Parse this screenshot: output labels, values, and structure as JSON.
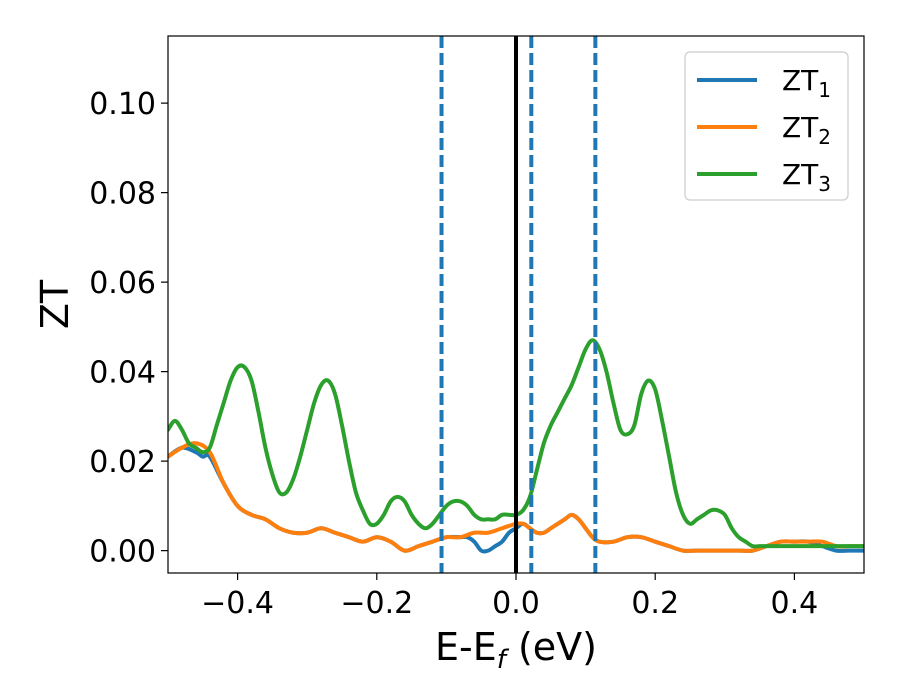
{
  "chart_data": {
    "type": "line",
    "xlabel": "E-E",
    "xlabel_subscript": "f",
    "xlabel_suffix": " (eV)",
    "ylabel": "ZT",
    "xlim": [
      -0.5,
      0.5
    ],
    "ylim": [
      -0.005,
      0.115
    ],
    "x_ticks": [
      {
        "value": -0.4,
        "label": "−0.4"
      },
      {
        "value": -0.2,
        "label": "−0.2"
      },
      {
        "value": 0.0,
        "label": "0.0"
      },
      {
        "value": 0.2,
        "label": "0.2"
      },
      {
        "value": 0.4,
        "label": "0.4"
      }
    ],
    "y_ticks": [
      {
        "value": 0.0,
        "label": "0.00"
      },
      {
        "value": 0.02,
        "label": "0.02"
      },
      {
        "value": 0.04,
        "label": "0.04"
      },
      {
        "value": 0.06,
        "label": "0.06"
      },
      {
        "value": 0.08,
        "label": "0.08"
      },
      {
        "value": 0.1,
        "label": "0.10"
      }
    ],
    "grid": false,
    "legend_position": "top-right",
    "solid_vertical_line": {
      "x": 0.0,
      "color": "#000000"
    },
    "dashed_vertical_lines": [
      {
        "x": -0.107,
        "color": "#1f77b4"
      },
      {
        "x": 0.022,
        "color": "#1f77b4"
      },
      {
        "x": 0.114,
        "color": "#1f77b4"
      }
    ],
    "series": [
      {
        "name": "ZT",
        "subscript": "1",
        "color": "#1f77b4",
        "x": [
          -0.5,
          -0.48,
          -0.46,
          -0.45,
          -0.44,
          -0.42,
          -0.4,
          -0.38,
          -0.36,
          -0.34,
          -0.32,
          -0.3,
          -0.28,
          -0.26,
          -0.24,
          -0.22,
          -0.2,
          -0.18,
          -0.16,
          -0.14,
          -0.12,
          -0.1,
          -0.08,
          -0.07,
          -0.06,
          -0.05,
          -0.04,
          -0.03,
          -0.02,
          -0.01,
          0.0,
          0.01,
          0.02,
          0.03,
          0.04,
          0.05,
          0.06,
          0.07,
          0.08,
          0.09,
          0.1,
          0.11,
          0.12,
          0.14,
          0.16,
          0.18,
          0.2,
          0.22,
          0.24,
          0.26,
          0.28,
          0.3,
          0.32,
          0.34,
          0.36,
          0.38,
          0.4,
          0.42,
          0.44,
          0.46,
          0.48,
          0.5
        ],
        "values": [
          0.021,
          0.023,
          0.022,
          0.021,
          0.021,
          0.015,
          0.01,
          0.008,
          0.007,
          0.005,
          0.004,
          0.004,
          0.005,
          0.004,
          0.003,
          0.002,
          0.003,
          0.002,
          0.0,
          0.001,
          0.002,
          0.003,
          0.003,
          0.003,
          0.002,
          0.0,
          0.0,
          0.001,
          0.002,
          0.004,
          0.005,
          0.006,
          0.005,
          0.004,
          0.004,
          0.005,
          0.006,
          0.007,
          0.008,
          0.007,
          0.005,
          0.003,
          0.002,
          0.002,
          0.003,
          0.003,
          0.002,
          0.001,
          0.0,
          0.0,
          0.0,
          0.0,
          0.0,
          0.0,
          0.001,
          0.002,
          0.002,
          0.002,
          0.001,
          0.0,
          0.0,
          0.0
        ]
      },
      {
        "name": "ZT",
        "subscript": "2",
        "color": "#ff7f0e",
        "x": [
          -0.5,
          -0.48,
          -0.46,
          -0.44,
          -0.42,
          -0.4,
          -0.38,
          -0.36,
          -0.34,
          -0.32,
          -0.3,
          -0.28,
          -0.26,
          -0.24,
          -0.22,
          -0.2,
          -0.18,
          -0.16,
          -0.14,
          -0.12,
          -0.1,
          -0.08,
          -0.06,
          -0.04,
          -0.02,
          0.0,
          0.01,
          0.02,
          0.03,
          0.04,
          0.05,
          0.06,
          0.07,
          0.08,
          0.09,
          0.1,
          0.11,
          0.12,
          0.14,
          0.16,
          0.18,
          0.2,
          0.22,
          0.24,
          0.26,
          0.28,
          0.3,
          0.32,
          0.34,
          0.36,
          0.38,
          0.4,
          0.42,
          0.44,
          0.46,
          0.48,
          0.5
        ],
        "values": [
          0.021,
          0.023,
          0.024,
          0.022,
          0.015,
          0.01,
          0.008,
          0.007,
          0.005,
          0.004,
          0.004,
          0.005,
          0.004,
          0.003,
          0.002,
          0.003,
          0.002,
          0.0,
          0.001,
          0.002,
          0.003,
          0.003,
          0.004,
          0.004,
          0.005,
          0.006,
          0.006,
          0.005,
          0.004,
          0.004,
          0.005,
          0.006,
          0.007,
          0.008,
          0.007,
          0.005,
          0.003,
          0.002,
          0.002,
          0.003,
          0.003,
          0.002,
          0.001,
          0.0,
          0.0,
          0.0,
          0.0,
          0.0,
          0.0,
          0.001,
          0.002,
          0.002,
          0.002,
          0.002,
          0.001,
          0.001,
          0.001
        ]
      },
      {
        "name": "ZT",
        "subscript": "3",
        "color": "#2ca02c",
        "x": [
          -0.5,
          -0.49,
          -0.48,
          -0.47,
          -0.46,
          -0.45,
          -0.44,
          -0.43,
          -0.42,
          -0.41,
          -0.4,
          -0.39,
          -0.38,
          -0.37,
          -0.36,
          -0.35,
          -0.34,
          -0.33,
          -0.32,
          -0.31,
          -0.3,
          -0.29,
          -0.28,
          -0.27,
          -0.26,
          -0.25,
          -0.24,
          -0.23,
          -0.22,
          -0.21,
          -0.2,
          -0.19,
          -0.18,
          -0.17,
          -0.16,
          -0.15,
          -0.14,
          -0.13,
          -0.12,
          -0.11,
          -0.1,
          -0.09,
          -0.08,
          -0.07,
          -0.06,
          -0.05,
          -0.04,
          -0.03,
          -0.02,
          -0.01,
          0.0,
          0.01,
          0.02,
          0.03,
          0.04,
          0.05,
          0.06,
          0.07,
          0.08,
          0.09,
          0.1,
          0.11,
          0.12,
          0.13,
          0.14,
          0.15,
          0.16,
          0.17,
          0.18,
          0.19,
          0.2,
          0.21,
          0.22,
          0.23,
          0.24,
          0.25,
          0.26,
          0.27,
          0.28,
          0.29,
          0.3,
          0.31,
          0.32,
          0.33,
          0.34,
          0.35,
          0.36,
          0.37,
          0.38,
          0.39,
          0.4,
          0.41,
          0.42,
          0.43,
          0.44,
          0.45,
          0.46,
          0.47,
          0.48,
          0.49,
          0.5
        ],
        "values": [
          0.027,
          0.029,
          0.027,
          0.024,
          0.023,
          0.022,
          0.023,
          0.028,
          0.033,
          0.038,
          0.041,
          0.041,
          0.038,
          0.031,
          0.023,
          0.017,
          0.013,
          0.013,
          0.016,
          0.021,
          0.027,
          0.033,
          0.037,
          0.038,
          0.035,
          0.028,
          0.02,
          0.013,
          0.009,
          0.006,
          0.006,
          0.008,
          0.011,
          0.012,
          0.011,
          0.008,
          0.006,
          0.005,
          0.006,
          0.008,
          0.01,
          0.011,
          0.011,
          0.01,
          0.008,
          0.007,
          0.007,
          0.007,
          0.008,
          0.008,
          0.008,
          0.009,
          0.012,
          0.018,
          0.024,
          0.028,
          0.031,
          0.034,
          0.037,
          0.041,
          0.045,
          0.047,
          0.045,
          0.04,
          0.033,
          0.027,
          0.026,
          0.028,
          0.035,
          0.038,
          0.036,
          0.029,
          0.021,
          0.013,
          0.008,
          0.006,
          0.007,
          0.008,
          0.009,
          0.009,
          0.008,
          0.005,
          0.003,
          0.002,
          0.001,
          0.001,
          0.001,
          0.001,
          0.001,
          0.001,
          0.001,
          0.001,
          0.001,
          0.001,
          0.001,
          0.001,
          0.001,
          0.001,
          0.001,
          0.001,
          0.001
        ]
      }
    ]
  }
}
